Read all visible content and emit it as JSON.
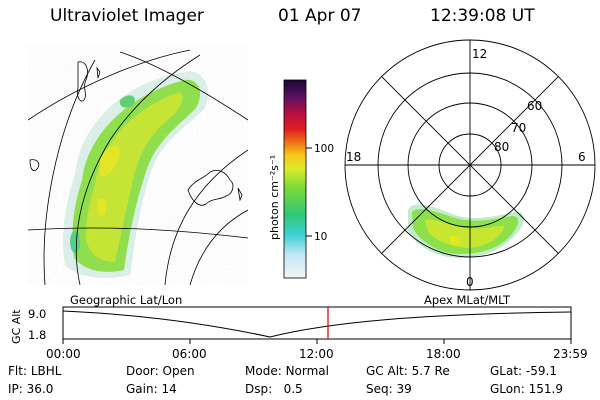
{
  "header": {
    "instrument": "Ultraviolet Imager",
    "date": "01 Apr 07",
    "time": "12:39:08 UT"
  },
  "geo_panel": {
    "label": "Geographic Lat/Lon"
  },
  "colorbar": {
    "unit_label": "photon cm⁻²s⁻¹",
    "ticks": [
      "100",
      "10"
    ],
    "scale": "log"
  },
  "polar_panel": {
    "label": "Apex MLat/MLT",
    "lat_labels": [
      "60",
      "70",
      "80"
    ],
    "mlt_labels": [
      "12",
      "18",
      "6",
      "0"
    ]
  },
  "altitude_strip": {
    "ylabel": "GC Alt",
    "y_ticks": [
      "9.0",
      "1.8"
    ],
    "x_ticks": [
      "00:00",
      "06:00",
      "12:00",
      "18:00",
      "23:59"
    ],
    "current_time_marker": "12:39:08",
    "marker_color": "#dd0000"
  },
  "info": {
    "row1": [
      {
        "label": "Flt:",
        "value": "LBHL"
      },
      {
        "label": "Door:",
        "value": "Open"
      },
      {
        "label": "Mode:",
        "value": "Normal"
      },
      {
        "label": "GC Alt:",
        "value": "5.7 Re"
      },
      {
        "label": "GLat:",
        "value": "-59.1"
      }
    ],
    "row2": [
      {
        "label": "IP:",
        "value": "36.0"
      },
      {
        "label": "Gain:",
        "value": "14"
      },
      {
        "label": "Dsp:",
        "value": "0.5"
      },
      {
        "label": "Seq:",
        "value": "39"
      },
      {
        "label": "GLon:",
        "value": "151.9"
      }
    ]
  }
}
